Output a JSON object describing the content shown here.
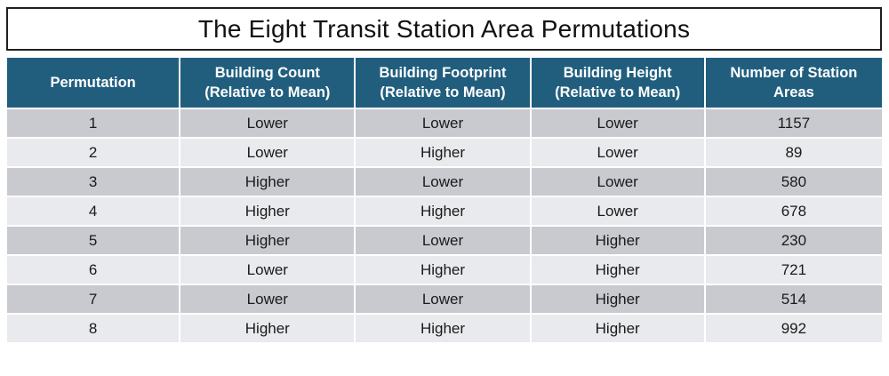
{
  "title": "The Eight Transit Station Area Permutations",
  "colors": {
    "header_bg": "#215E7E",
    "header_text": "#FFFFFF",
    "row_odd_bg": "#C8CAD0",
    "row_even_bg": "#E9EAED",
    "separator": "#FFFFFF",
    "title_border": "#1F1F1F",
    "body_text": "#1A1A1A"
  },
  "table": {
    "headers": [
      {
        "line1": "Permutation",
        "line2": ""
      },
      {
        "line1": "Building Count",
        "line2": "(Relative to Mean)"
      },
      {
        "line1": "Building Footprint",
        "line2": "(Relative to Mean)"
      },
      {
        "line1": "Building Height",
        "line2": "(Relative to Mean)"
      },
      {
        "line1": "Number of Station",
        "line2": "Areas"
      }
    ],
    "rows": [
      {
        "cells": [
          "1",
          "Lower",
          "Lower",
          "Lower",
          "1157"
        ]
      },
      {
        "cells": [
          "2",
          "Lower",
          "Higher",
          "Lower",
          "89"
        ]
      },
      {
        "cells": [
          "3",
          "Higher",
          "Lower",
          "Lower",
          "580"
        ]
      },
      {
        "cells": [
          "4",
          "Higher",
          "Higher",
          "Lower",
          "678"
        ]
      },
      {
        "cells": [
          "5",
          "Higher",
          "Lower",
          "Higher",
          "230"
        ]
      },
      {
        "cells": [
          "6",
          "Lower",
          "Higher",
          "Higher",
          "721"
        ]
      },
      {
        "cells": [
          "7",
          "Lower",
          "Lower",
          "Higher",
          "514"
        ]
      },
      {
        "cells": [
          "8",
          "Higher",
          "Higher",
          "Higher",
          "992"
        ]
      }
    ]
  },
  "chart_data": {
    "type": "table",
    "title": "The Eight Transit Station Area Permutations",
    "columns": [
      "Permutation",
      "Building Count (Relative to Mean)",
      "Building Footprint (Relative to Mean)",
      "Building Height (Relative to Mean)",
      "Number of Station Areas"
    ],
    "rows": [
      [
        1,
        "Lower",
        "Lower",
        "Lower",
        1157
      ],
      [
        2,
        "Lower",
        "Higher",
        "Lower",
        89
      ],
      [
        3,
        "Higher",
        "Lower",
        "Lower",
        580
      ],
      [
        4,
        "Higher",
        "Higher",
        "Lower",
        678
      ],
      [
        5,
        "Higher",
        "Lower",
        "Higher",
        230
      ],
      [
        6,
        "Lower",
        "Higher",
        "Higher",
        721
      ],
      [
        7,
        "Lower",
        "Lower",
        "Higher",
        514
      ],
      [
        8,
        "Higher",
        "Higher",
        "Higher",
        992
      ]
    ]
  }
}
